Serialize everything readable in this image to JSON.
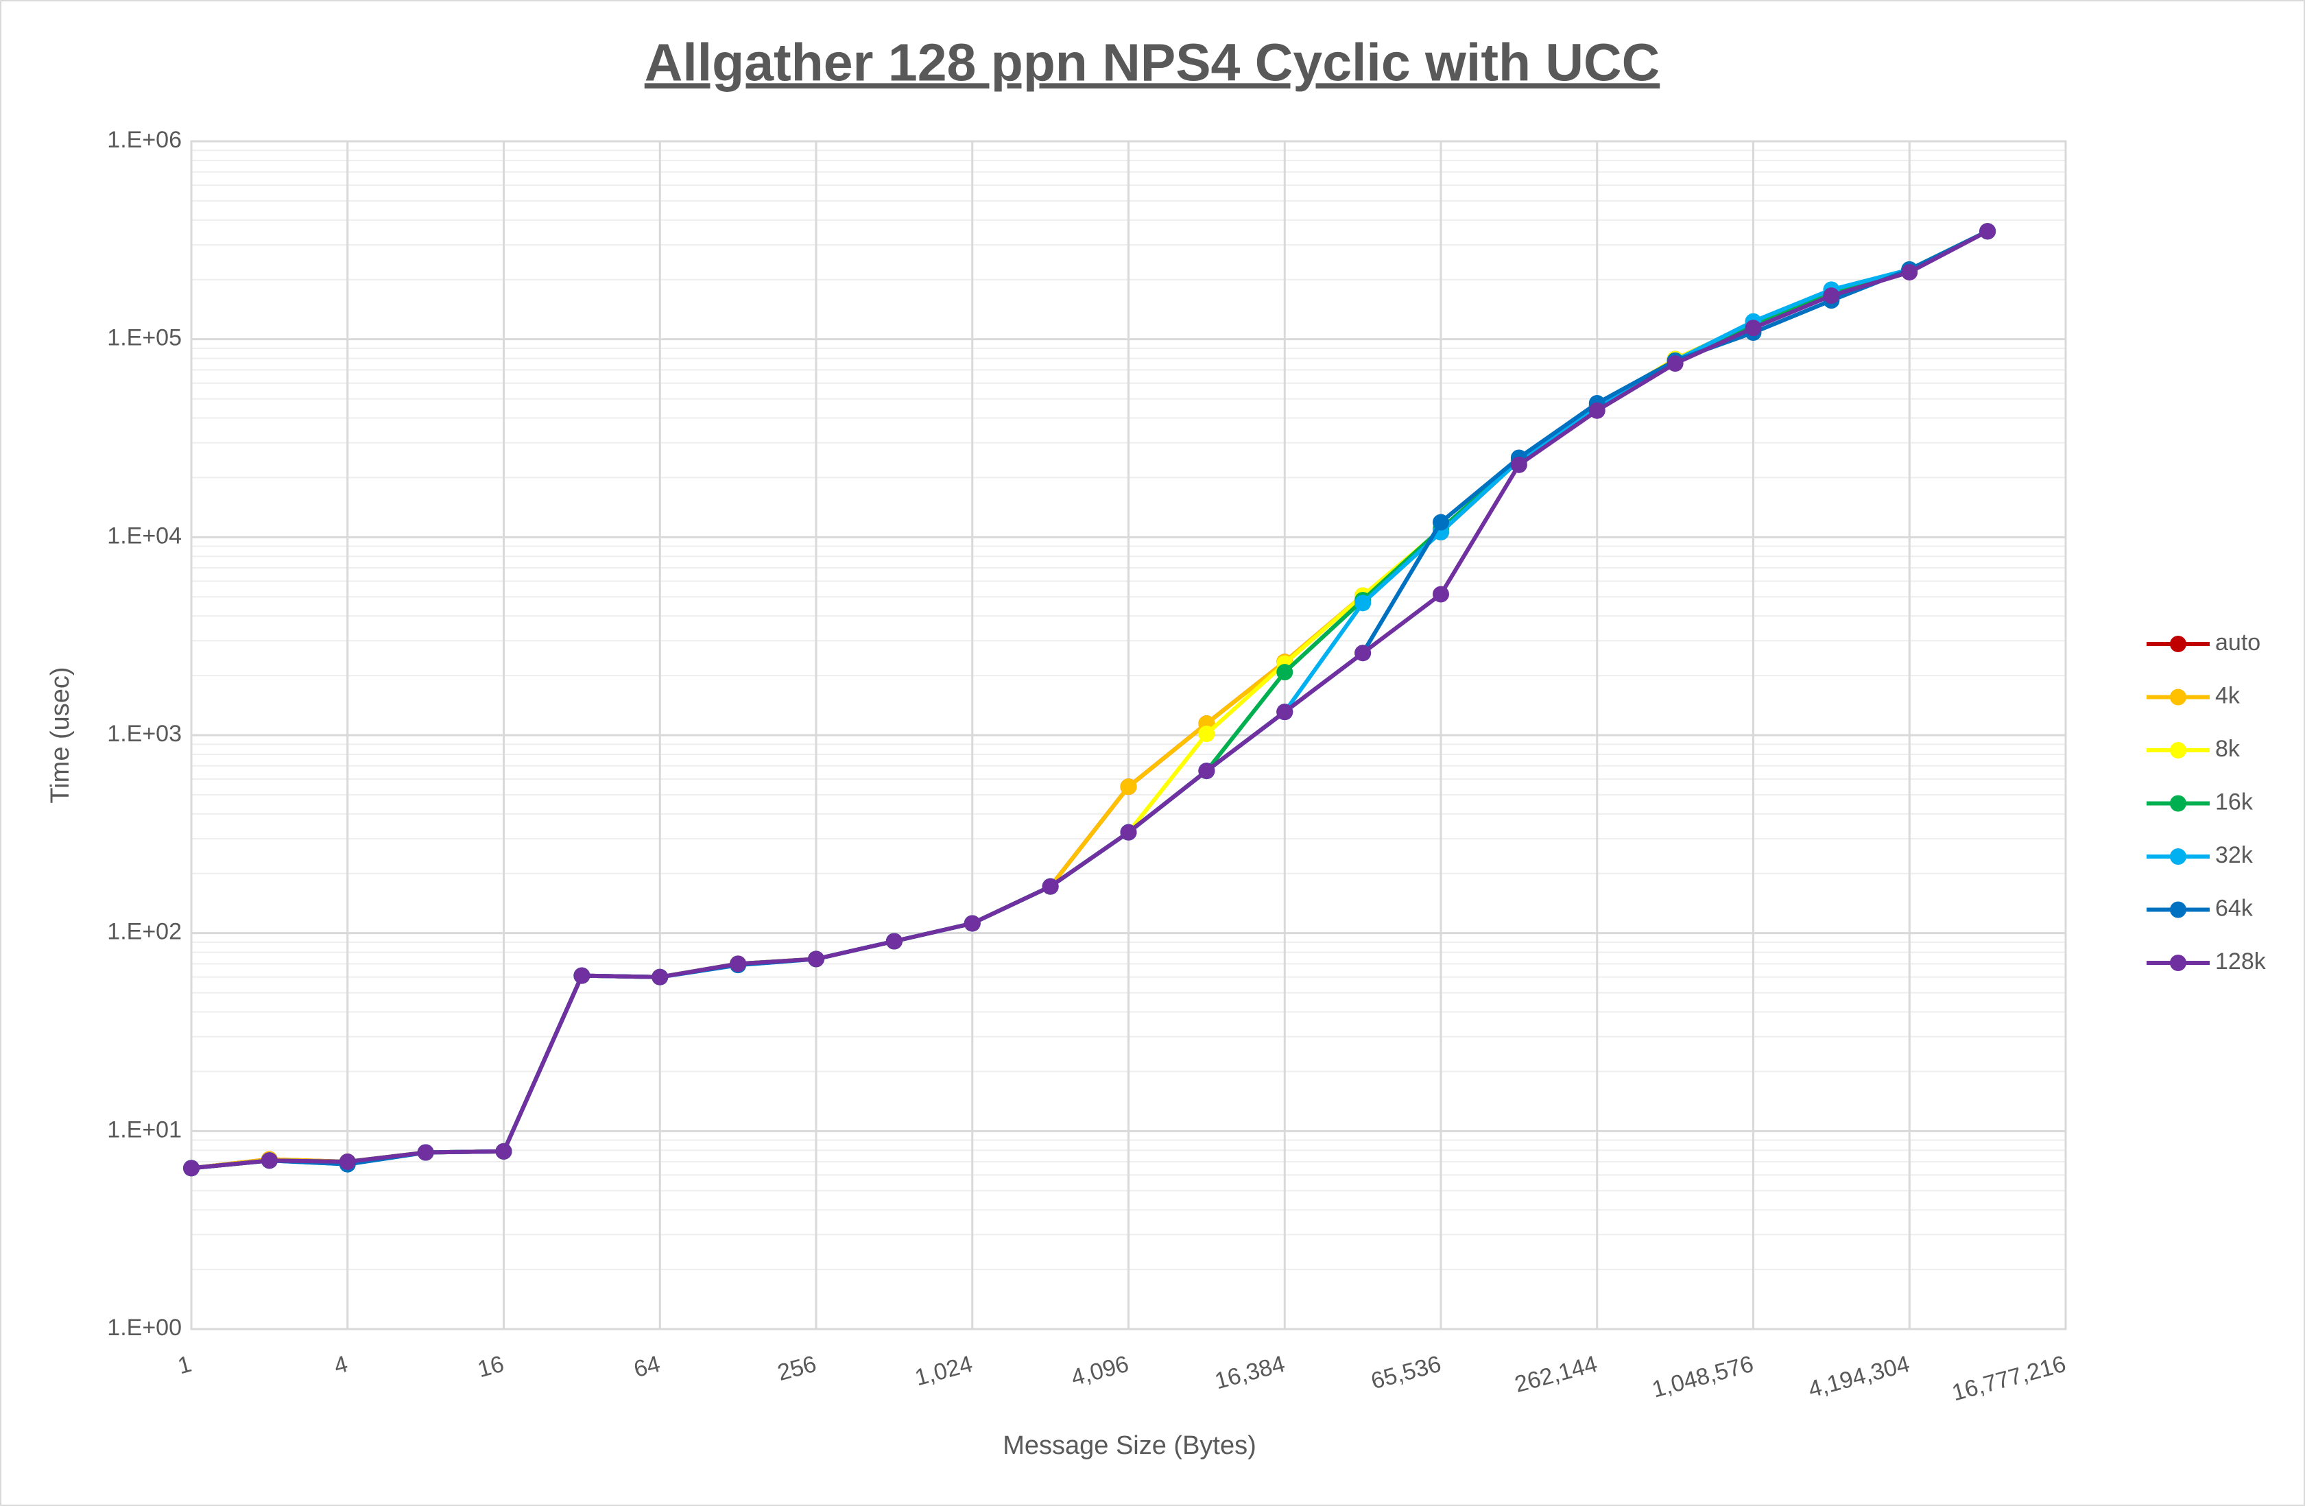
{
  "chart_data": {
    "type": "line",
    "title": "Allgather 128 ppn NPS4 Cyclic with UCC",
    "x_label": "Message Size (Bytes)",
    "y_label": "Time (usec)",
    "x": [
      1,
      2,
      4,
      8,
      16,
      32,
      64,
      128,
      256,
      512,
      1024,
      2048,
      4096,
      8192,
      16384,
      32768,
      65536,
      131072,
      262144,
      524288,
      1048576,
      2097152,
      4194304,
      8388608
    ],
    "x_log_base": 2,
    "y_log": true,
    "xlim": [
      1,
      16777216
    ],
    "ylim": [
      1,
      1000000
    ],
    "xticks": [
      1,
      4,
      16,
      64,
      256,
      {
        "value": 1024,
        "label": "1,024"
      },
      {
        "value": 4096,
        "label": "4,096"
      },
      {
        "value": 16384,
        "label": "16,384"
      },
      {
        "value": 65536,
        "label": "65,536"
      },
      {
        "value": 262144,
        "label": "262,144"
      },
      {
        "value": 1048576,
        "label": "1,048,576"
      },
      {
        "value": 4194304,
        "label": "4,194,304"
      },
      {
        "value": 16777216,
        "label": "16,777,216"
      }
    ],
    "yticks": [
      {
        "value": 1,
        "label": "1.E+00"
      },
      {
        "value": 10,
        "label": "1.E+01"
      },
      {
        "value": 100,
        "label": "1.E+02"
      },
      {
        "value": 1000,
        "label": "1.E+03"
      },
      {
        "value": 10000,
        "label": "1.E+04"
      },
      {
        "value": 100000,
        "label": "1.E+05"
      },
      {
        "value": 1000000,
        "label": "1.E+06"
      }
    ],
    "grid": true,
    "minor_grid": true,
    "legend": "right",
    "series": [
      {
        "name": "auto",
        "color": "#c00000",
        "values": [
          6.5,
          7.2,
          7.0,
          7.8,
          7.9,
          61,
          60,
          70,
          74,
          91,
          112,
          172,
          549,
          1145,
          2345,
          5070,
          10600,
          24400,
          45900,
          79400,
          120000,
          174000,
          225000,
          351000
        ]
      },
      {
        "name": "4k",
        "color": "#ffc000",
        "values": [
          6.5,
          7.2,
          7.0,
          7.8,
          7.9,
          61,
          60,
          70,
          74,
          91,
          112,
          172,
          549,
          1145,
          2345,
          5070,
          10600,
          24400,
          45900,
          79400,
          120000,
          174000,
          225000,
          351000
        ]
      },
      {
        "name": "8k",
        "color": "#ffff00",
        "values": [
          6.5,
          7.1,
          7.0,
          7.8,
          7.9,
          61,
          60,
          70,
          74,
          91,
          112,
          172,
          323,
          1015,
          2300,
          5070,
          10900,
          24400,
          45900,
          79400,
          120000,
          174000,
          225000,
          351000
        ]
      },
      {
        "name": "16k",
        "color": "#00b050",
        "values": [
          6.5,
          7.1,
          7.0,
          7.8,
          7.9,
          61,
          60,
          70,
          74,
          91,
          112,
          172,
          323,
          660,
          2080,
          4810,
          11000,
          24400,
          45900,
          78000,
          118000,
          174000,
          225000,
          351000
        ]
      },
      {
        "name": "32k",
        "color": "#00b0f0",
        "values": [
          6.5,
          7.1,
          6.8,
          7.8,
          7.9,
          61,
          60,
          69,
          74,
          91,
          112,
          172,
          323,
          660,
          1310,
          4650,
          10600,
          24400,
          45900,
          78000,
          123000,
          178000,
          225000,
          351000
        ]
      },
      {
        "name": "64k",
        "color": "#0070c0",
        "values": [
          6.5,
          7.1,
          6.8,
          7.8,
          7.9,
          61,
          60,
          69,
          74,
          91,
          112,
          172,
          323,
          660,
          1310,
          2600,
          11900,
          25200,
          47500,
          78000,
          108000,
          157000,
          225000,
          351000
        ]
      },
      {
        "name": "128k",
        "color": "#7030a0",
        "values": [
          6.5,
          7.1,
          7.0,
          7.8,
          7.9,
          61,
          60,
          70,
          74,
          91,
          112,
          172,
          323,
          660,
          1310,
          2600,
          5150,
          23200,
          43600,
          75400,
          114000,
          166000,
          218000,
          351000
        ]
      }
    ]
  }
}
